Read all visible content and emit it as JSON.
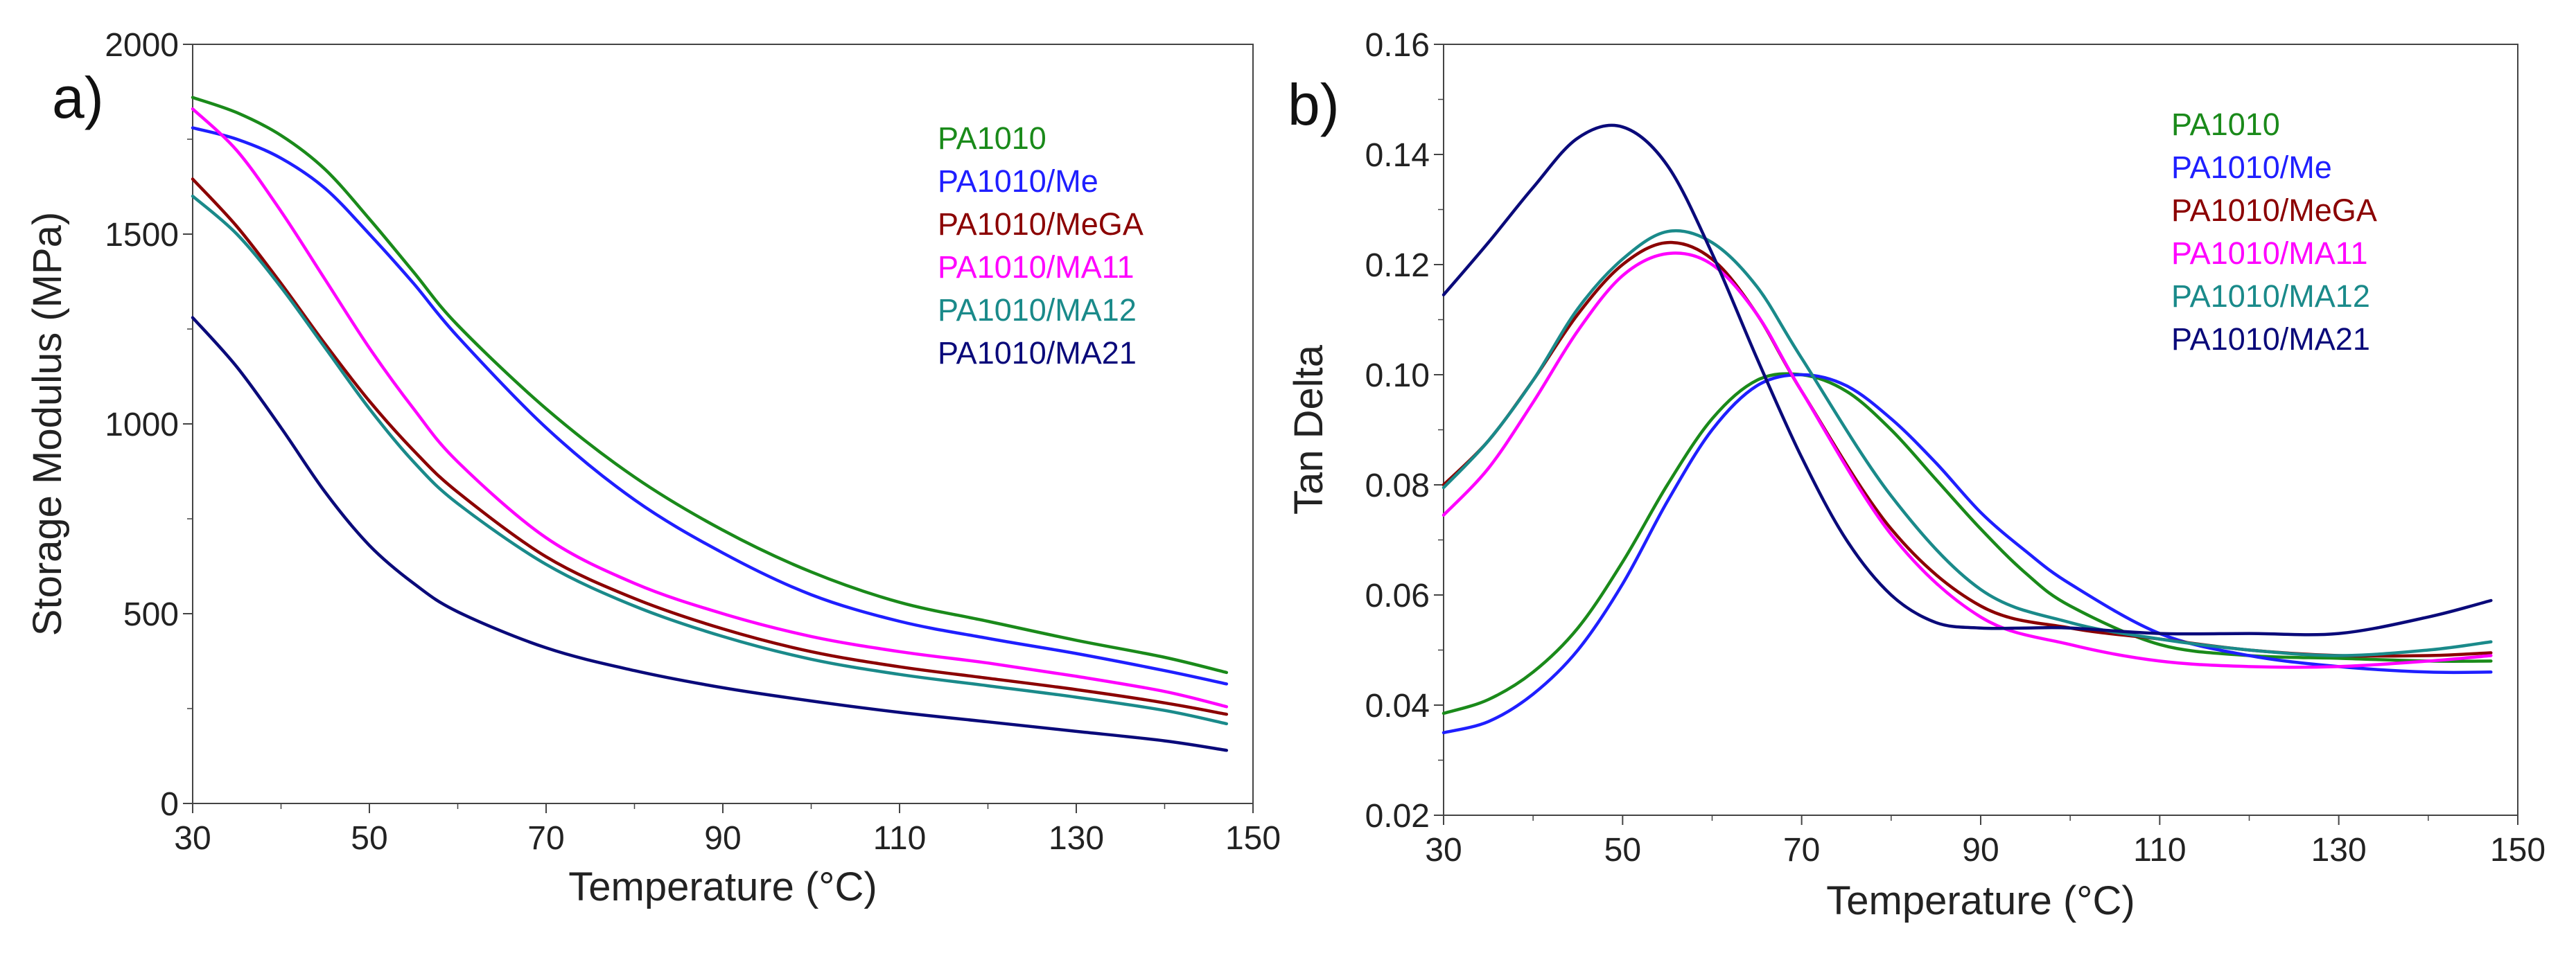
{
  "chart_data": [
    {
      "type": "line",
      "panel_label": "a)",
      "xlabel": "Temperature (°C)",
      "ylabel": "Storage Modulus (MPa)",
      "xlim": [
        30,
        150
      ],
      "ylim": [
        0,
        2000
      ],
      "xticks": [
        30,
        50,
        70,
        90,
        110,
        130,
        150
      ],
      "yticks": [
        0,
        500,
        1000,
        1500,
        2000
      ],
      "xtick_labels": [
        "30",
        "50",
        "70",
        "90",
        "110",
        "130",
        "150"
      ],
      "ytick_labels": [
        "0",
        "500",
        "1000",
        "1500",
        "2000"
      ],
      "grid": false,
      "legend_position": "top-right",
      "series": [
        {
          "name": "PA1010",
          "color": "#1a8a1a",
          "x": [
            30,
            35,
            40,
            45,
            50,
            55,
            60,
            70,
            80,
            90,
            100,
            110,
            120,
            130,
            140,
            147
          ],
          "y": [
            1860,
            1820,
            1760,
            1670,
            1540,
            1400,
            1260,
            1040,
            860,
            720,
            610,
            530,
            480,
            430,
            385,
            345
          ]
        },
        {
          "name": "PA1010/Me",
          "color": "#1f1fff",
          "x": [
            30,
            35,
            40,
            45,
            50,
            55,
            60,
            70,
            80,
            90,
            100,
            110,
            120,
            130,
            140,
            147
          ],
          "y": [
            1780,
            1750,
            1700,
            1620,
            1500,
            1370,
            1230,
            990,
            800,
            660,
            550,
            480,
            435,
            395,
            350,
            315
          ]
        },
        {
          "name": "PA1010/MeGA",
          "color": "#8b0000",
          "x": [
            30,
            35,
            40,
            45,
            50,
            55,
            60,
            70,
            80,
            90,
            100,
            110,
            120,
            130,
            140,
            147
          ],
          "y": [
            1645,
            1520,
            1370,
            1210,
            1060,
            930,
            820,
            650,
            540,
            460,
            400,
            360,
            330,
            300,
            265,
            235
          ]
        },
        {
          "name": "PA1010/MA11",
          "color": "#ff00ff",
          "x": [
            30,
            35,
            40,
            45,
            50,
            55,
            60,
            70,
            80,
            90,
            100,
            110,
            120,
            130,
            140,
            147
          ],
          "y": [
            1830,
            1720,
            1560,
            1380,
            1200,
            1040,
            900,
            700,
            580,
            500,
            440,
            400,
            370,
            335,
            295,
            255
          ]
        },
        {
          "name": "PA1010/MA12",
          "color": "#1a8a8a",
          "x": [
            30,
            35,
            40,
            45,
            50,
            55,
            60,
            70,
            80,
            90,
            100,
            110,
            120,
            130,
            140,
            147
          ],
          "y": [
            1600,
            1500,
            1360,
            1200,
            1040,
            900,
            790,
            630,
            520,
            440,
            380,
            340,
            310,
            280,
            245,
            210
          ]
        },
        {
          "name": "PA1010/MA21",
          "color": "#0a0a7a",
          "x": [
            30,
            35,
            40,
            45,
            50,
            55,
            60,
            70,
            80,
            90,
            100,
            110,
            120,
            130,
            140,
            147
          ],
          "y": [
            1280,
            1150,
            990,
            820,
            680,
            580,
            505,
            410,
            350,
            305,
            270,
            240,
            215,
            190,
            165,
            140
          ]
        }
      ]
    },
    {
      "type": "line",
      "panel_label": "b)",
      "xlabel": "Temperature (°C)",
      "ylabel": "Tan Delta",
      "xlim": [
        30,
        150
      ],
      "ylim": [
        0.02,
        0.16
      ],
      "xticks": [
        30,
        50,
        70,
        90,
        110,
        130,
        150
      ],
      "yticks": [
        0.02,
        0.04,
        0.06,
        0.08,
        0.1,
        0.12,
        0.14,
        0.16
      ],
      "xtick_labels": [
        "30",
        "50",
        "70",
        "90",
        "110",
        "130",
        "150"
      ],
      "ytick_labels": [
        "0.02",
        "0.04",
        "0.06",
        "0.08",
        "0.10",
        "0.12",
        "0.14",
        "0.16"
      ],
      "grid": false,
      "legend_position": "top-right",
      "series": [
        {
          "name": "PA1010",
          "color": "#1a8a1a",
          "x": [
            30,
            35,
            40,
            45,
            50,
            55,
            60,
            65,
            70,
            75,
            80,
            85,
            90,
            95,
            100,
            110,
            120,
            130,
            140,
            147
          ],
          "y": [
            0.0385,
            0.041,
            0.046,
            0.054,
            0.066,
            0.08,
            0.092,
            0.099,
            0.1,
            0.097,
            0.09,
            0.081,
            0.072,
            0.064,
            0.058,
            0.051,
            0.049,
            0.0485,
            0.048,
            0.048
          ]
        },
        {
          "name": "PA1010/Me",
          "color": "#1f1fff",
          "x": [
            30,
            35,
            40,
            45,
            50,
            55,
            60,
            65,
            70,
            75,
            80,
            85,
            90,
            95,
            100,
            110,
            120,
            130,
            140,
            147
          ],
          "y": [
            0.035,
            0.037,
            0.042,
            0.05,
            0.062,
            0.077,
            0.09,
            0.098,
            0.1,
            0.098,
            0.092,
            0.084,
            0.075,
            0.068,
            0.062,
            0.053,
            0.049,
            0.047,
            0.046,
            0.046
          ]
        },
        {
          "name": "PA1010/MeGA",
          "color": "#8b0000",
          "x": [
            30,
            35,
            40,
            45,
            50,
            55,
            60,
            65,
            70,
            80,
            90,
            100,
            110,
            120,
            130,
            140,
            147
          ],
          "y": [
            0.08,
            0.088,
            0.099,
            0.111,
            0.12,
            0.124,
            0.121,
            0.111,
            0.097,
            0.072,
            0.058,
            0.054,
            0.052,
            0.05,
            0.049,
            0.049,
            0.0495
          ]
        },
        {
          "name": "PA1010/MA11",
          "color": "#ff00ff",
          "x": [
            30,
            35,
            40,
            45,
            50,
            55,
            60,
            65,
            70,
            80,
            90,
            100,
            110,
            120,
            130,
            140,
            147
          ],
          "y": [
            0.0745,
            0.083,
            0.095,
            0.108,
            0.118,
            0.122,
            0.12,
            0.111,
            0.097,
            0.071,
            0.056,
            0.051,
            0.048,
            0.047,
            0.047,
            0.048,
            0.049
          ]
        },
        {
          "name": "PA1010/MA12",
          "color": "#1a8a8a",
          "x": [
            30,
            35,
            40,
            45,
            50,
            55,
            60,
            65,
            70,
            80,
            90,
            100,
            110,
            120,
            130,
            140,
            147
          ],
          "y": [
            0.0795,
            0.088,
            0.099,
            0.112,
            0.121,
            0.126,
            0.124,
            0.116,
            0.103,
            0.078,
            0.061,
            0.055,
            0.052,
            0.05,
            0.049,
            0.05,
            0.0515
          ]
        },
        {
          "name": "PA1010/MA21",
          "color": "#0a0a7a",
          "x": [
            30,
            35,
            40,
            45,
            50,
            55,
            60,
            65,
            70,
            75,
            80,
            85,
            90,
            95,
            100,
            110,
            120,
            130,
            140,
            147
          ],
          "y": [
            0.1145,
            0.124,
            0.134,
            0.143,
            0.145,
            0.138,
            0.122,
            0.103,
            0.085,
            0.07,
            0.06,
            0.055,
            0.054,
            0.054,
            0.054,
            0.053,
            0.053,
            0.053,
            0.056,
            0.059
          ]
        }
      ]
    }
  ]
}
